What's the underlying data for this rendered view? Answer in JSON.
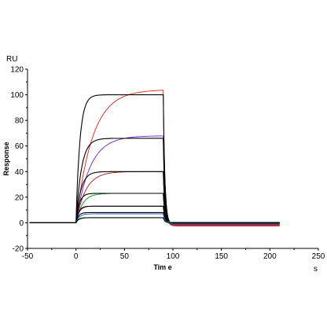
{
  "chart_data": {
    "type": "line",
    "title": "",
    "xlabel": "Tim e",
    "ylabel": "Response",
    "y_unit": "RU",
    "x_unit": "s",
    "xlim": [
      -50,
      250
    ],
    "ylim": [
      -20,
      120
    ],
    "x_ticks": [
      -50,
      0,
      50,
      100,
      150,
      200,
      250
    ],
    "y_ticks": [
      -20,
      0,
      20,
      40,
      60,
      80,
      100,
      120
    ],
    "grid": false,
    "legend": "none",
    "injection_start": 0,
    "injection_end": 90,
    "x_end": 210,
    "series": [
      {
        "kind": "measured",
        "color": "#e8201b",
        "plateau": 104,
        "final": -2.5,
        "kon": 0.06
      },
      {
        "kind": "fit",
        "color": "#000000",
        "plateau": 100,
        "final": -1,
        "kon": 0.25
      },
      {
        "kind": "measured",
        "color": "#7a1fd6",
        "plateau": 68,
        "final": -2,
        "kon": 0.07
      },
      {
        "kind": "fit",
        "color": "#000000",
        "plateau": 66,
        "final": -1,
        "kon": 0.18
      },
      {
        "kind": "measured",
        "color": "#b5171a",
        "plateau": 40,
        "final": -1.5,
        "kon": 0.1
      },
      {
        "kind": "fit",
        "color": "#000000",
        "plateau": 40,
        "final": -0.5,
        "kon": 0.2
      },
      {
        "kind": "measured",
        "color": "#0c8a1e",
        "plateau": 23,
        "final": -1,
        "kon": 0.15
      },
      {
        "kind": "fit",
        "color": "#000000",
        "plateau": 23,
        "final": -0.5,
        "kon": 0.3
      },
      {
        "kind": "measured",
        "color": "#a0177e",
        "plateau": 13,
        "final": -0.5,
        "kon": 0.3
      },
      {
        "kind": "fit",
        "color": "#000000",
        "plateau": 13,
        "final": 0,
        "kon": 0.35
      },
      {
        "kind": "fit",
        "color": "#000000",
        "plateau": 8,
        "final": 0,
        "kon": 0.4
      },
      {
        "kind": "measured",
        "color": "#1a56d8",
        "plateau": 7,
        "final": 0,
        "kon": 0.3
      },
      {
        "kind": "measured",
        "color": "#1f9f9f",
        "plateau": 4,
        "final": 0.5,
        "kon": 0.3
      },
      {
        "kind": "fit",
        "color": "#000000",
        "plateau": 4,
        "final": 0,
        "kon": 0.4
      }
    ]
  }
}
